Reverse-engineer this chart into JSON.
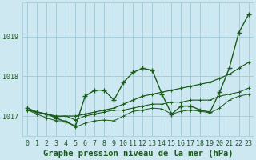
{
  "xlabel": "Graphe pression niveau de la mer (hPa)",
  "background_color": "#cde8f0",
  "plot_background": "#cde8f0",
  "grid_color": "#a0c8d8",
  "line_color": "#1a5c1a",
  "x": [
    0,
    1,
    2,
    3,
    4,
    5,
    6,
    7,
    8,
    9,
    10,
    11,
    12,
    13,
    14,
    15,
    16,
    17,
    18,
    19,
    20,
    21,
    22,
    23
  ],
  "y_series1": [
    1017.2,
    1017.1,
    1017.05,
    1016.95,
    1016.85,
    1016.75,
    1017.5,
    1017.65,
    1017.65,
    1017.4,
    1017.85,
    1018.1,
    1018.2,
    1018.15,
    1017.55,
    1017.05,
    1017.25,
    1017.25,
    1017.15,
    1017.1,
    1017.6,
    1018.2,
    1019.1,
    1019.55
  ],
  "y_series2": [
    1017.15,
    1017.1,
    1017.05,
    1017.0,
    1017.0,
    1017.0,
    1017.05,
    1017.1,
    1017.15,
    1017.2,
    1017.3,
    1017.4,
    1017.5,
    1017.55,
    1017.6,
    1017.65,
    1017.7,
    1017.75,
    1017.8,
    1017.85,
    1017.95,
    1018.05,
    1018.2,
    1018.35
  ],
  "y_series3": [
    1017.15,
    1017.1,
    1017.05,
    1016.98,
    1017.0,
    1016.9,
    1017.0,
    1017.05,
    1017.1,
    1017.15,
    1017.15,
    1017.2,
    1017.25,
    1017.3,
    1017.3,
    1017.35,
    1017.35,
    1017.4,
    1017.4,
    1017.4,
    1017.5,
    1017.55,
    1017.6,
    1017.7
  ],
  "y_series4": [
    1017.15,
    1017.05,
    1016.95,
    1016.88,
    1016.88,
    1016.72,
    1016.82,
    1016.88,
    1016.9,
    1016.88,
    1017.0,
    1017.12,
    1017.15,
    1017.2,
    1017.18,
    1017.05,
    1017.12,
    1017.15,
    1017.12,
    1017.08,
    1017.2,
    1017.4,
    1017.5,
    1017.55
  ],
  "ylim": [
    1016.5,
    1019.85
  ],
  "yticks": [
    1017,
    1018,
    1019
  ],
  "xlim": [
    -0.5,
    23.5
  ],
  "xticks": [
    0,
    1,
    2,
    3,
    4,
    5,
    6,
    7,
    8,
    9,
    10,
    11,
    12,
    13,
    14,
    15,
    16,
    17,
    18,
    19,
    20,
    21,
    22,
    23
  ],
  "marker_size": 3.5,
  "line_width": 1.0,
  "xlabel_fontsize": 7.5,
  "tick_fontsize": 6.0
}
